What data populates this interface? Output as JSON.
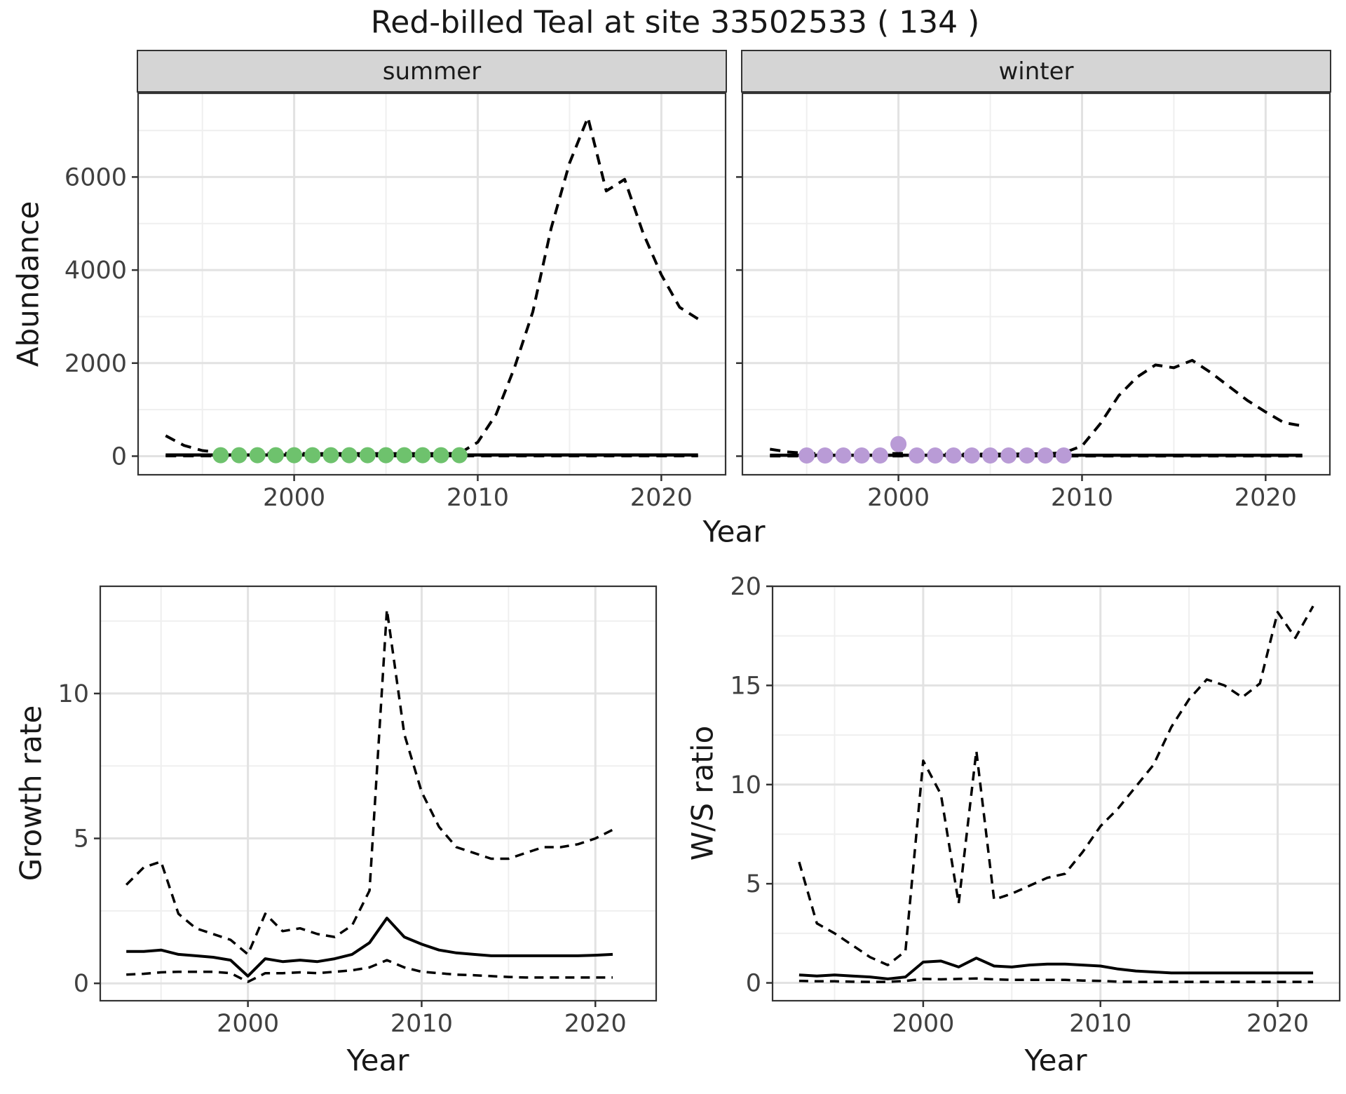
{
  "title": "Red-billed Teal at site 33502533 ( 134 )",
  "facets": {
    "summer": "summer",
    "winter": "winter"
  },
  "axis": {
    "top_xlabel": "Year",
    "top_ylabel": "Abundance",
    "growth_xlabel": "Year",
    "growth_ylabel": "Growth rate",
    "ws_xlabel": "Year",
    "ws_ylabel": "W/S ratio"
  },
  "colors": {
    "summer_points": "#6ec26d",
    "winter_points": "#b99bd6",
    "line": "#000000",
    "strip_bg": "#d5d5d5",
    "panel_border": "#333333",
    "grid_major": "#e2e2e2",
    "grid_minor": "#efefef",
    "tick_text": "#404040",
    "tick_mark": "#333333"
  },
  "chart_data": [
    {
      "id": "abundance_summer",
      "type": "line",
      "facet": "summer",
      "xlabel": "Year",
      "ylabel": "Abundance",
      "xlim": [
        1991.5,
        2023.5
      ],
      "ylim": [
        -400,
        7800
      ],
      "x_ticks": [
        2000,
        2010,
        2020
      ],
      "y_ticks": [
        0,
        2000,
        4000,
        6000
      ],
      "grid": true,
      "show_y_tick_labels": true,
      "series": [
        {
          "name": "upper_ci",
          "style": "dashed",
          "x": [
            1993,
            1994,
            1995,
            1996,
            1997,
            1998,
            1999,
            2000,
            2001,
            2002,
            2003,
            2004,
            2005,
            2006,
            2007,
            2008,
            2009,
            2010,
            2011,
            2012,
            2013,
            2014,
            2015,
            2016,
            2017,
            2018,
            2019,
            2020,
            2021,
            2022
          ],
          "y": [
            440,
            230,
            120,
            80,
            65,
            60,
            60,
            60,
            55,
            55,
            55,
            55,
            55,
            55,
            55,
            55,
            60,
            300,
            900,
            1900,
            3100,
            4900,
            6300,
            7280,
            5700,
            5950,
            4800,
            3900,
            3200,
            2950
          ]
        },
        {
          "name": "lower_ci",
          "style": "dashed",
          "x": [
            1993,
            1994,
            1995,
            1996,
            1997,
            1998,
            1999,
            2000,
            2001,
            2002,
            2003,
            2004,
            2005,
            2006,
            2007,
            2008,
            2009,
            2010,
            2011,
            2012,
            2013,
            2014,
            2015,
            2016,
            2017,
            2018,
            2019,
            2020,
            2021,
            2022
          ],
          "y": [
            5,
            5,
            5,
            5,
            5,
            5,
            5,
            5,
            5,
            5,
            5,
            5,
            5,
            5,
            5,
            5,
            5,
            5,
            5,
            5,
            5,
            5,
            5,
            5,
            5,
            5,
            5,
            5,
            5,
            5
          ]
        },
        {
          "name": "mean",
          "style": "solid",
          "x": [
            1993,
            1994,
            1995,
            1996,
            1997,
            1998,
            1999,
            2000,
            2001,
            2002,
            2003,
            2004,
            2005,
            2006,
            2007,
            2008,
            2009,
            2010,
            2011,
            2012,
            2013,
            2014,
            2015,
            2016,
            2017,
            2018,
            2019,
            2020,
            2021,
            2022
          ],
          "y": [
            25,
            25,
            25,
            25,
            25,
            25,
            25,
            25,
            25,
            25,
            25,
            25,
            25,
            25,
            25,
            25,
            25,
            25,
            25,
            25,
            25,
            25,
            25,
            25,
            25,
            25,
            25,
            25,
            25,
            25
          ]
        }
      ],
      "points": {
        "name": "observed_summer_counts",
        "color": "#6ec26d",
        "x": [
          1996,
          1997,
          1998,
          1999,
          2000,
          2001,
          2002,
          2003,
          2004,
          2005,
          2006,
          2007,
          2008,
          2009
        ],
        "y": [
          20,
          20,
          20,
          20,
          20,
          20,
          20,
          20,
          20,
          20,
          20,
          20,
          20,
          20
        ]
      }
    },
    {
      "id": "abundance_winter",
      "type": "line",
      "facet": "winter",
      "xlabel": "Year",
      "ylabel": "Abundance",
      "xlim": [
        1991.5,
        2023.5
      ],
      "ylim": [
        -400,
        7800
      ],
      "x_ticks": [
        2000,
        2010,
        2020
      ],
      "y_ticks": [
        0,
        2000,
        4000,
        6000
      ],
      "grid": true,
      "show_y_tick_labels": false,
      "series": [
        {
          "name": "upper_ci",
          "style": "dashed",
          "x": [
            1993,
            1994,
            1995,
            1996,
            1997,
            1998,
            1999,
            2000,
            2001,
            2002,
            2003,
            2004,
            2005,
            2006,
            2007,
            2008,
            2009,
            2010,
            2011,
            2012,
            2013,
            2014,
            2015,
            2016,
            2017,
            2018,
            2019,
            2020,
            2021,
            2022
          ],
          "y": [
            150,
            90,
            60,
            50,
            45,
            45,
            50,
            60,
            50,
            45,
            45,
            45,
            45,
            45,
            50,
            55,
            70,
            220,
            700,
            1300,
            1700,
            1960,
            1900,
            2060,
            1800,
            1500,
            1200,
            950,
            720,
            650
          ]
        },
        {
          "name": "lower_ci",
          "style": "dashed",
          "x": [
            1993,
            1994,
            1995,
            1996,
            1997,
            1998,
            1999,
            2000,
            2001,
            2002,
            2003,
            2004,
            2005,
            2006,
            2007,
            2008,
            2009,
            2010,
            2011,
            2012,
            2013,
            2014,
            2015,
            2016,
            2017,
            2018,
            2019,
            2020,
            2021,
            2022
          ],
          "y": [
            4,
            4,
            4,
            4,
            4,
            4,
            4,
            4,
            4,
            4,
            4,
            4,
            4,
            4,
            4,
            4,
            4,
            4,
            4,
            4,
            4,
            4,
            4,
            4,
            4,
            4,
            4,
            4,
            4,
            4
          ]
        },
        {
          "name": "mean",
          "style": "solid",
          "x": [
            1993,
            1994,
            1995,
            1996,
            1997,
            1998,
            1999,
            2000,
            2001,
            2002,
            2003,
            2004,
            2005,
            2006,
            2007,
            2008,
            2009,
            2010,
            2011,
            2012,
            2013,
            2014,
            2015,
            2016,
            2017,
            2018,
            2019,
            2020,
            2021,
            2022
          ],
          "y": [
            20,
            20,
            20,
            20,
            20,
            20,
            20,
            20,
            20,
            20,
            20,
            20,
            20,
            20,
            20,
            20,
            20,
            20,
            20,
            20,
            20,
            20,
            20,
            20,
            20,
            20,
            20,
            20,
            20,
            20
          ]
        }
      ],
      "points": {
        "name": "observed_winter_counts",
        "color": "#b99bd6",
        "x": [
          1995,
          1996,
          1997,
          1998,
          1999,
          2000,
          2001,
          2002,
          2003,
          2004,
          2005,
          2006,
          2007,
          2008,
          2009
        ],
        "y": [
          15,
          15,
          15,
          15,
          15,
          260,
          15,
          15,
          15,
          15,
          15,
          15,
          15,
          15,
          15
        ]
      }
    },
    {
      "id": "growth_rate",
      "type": "line",
      "xlabel": "Year",
      "ylabel": "Growth rate",
      "xlim": [
        1991.5,
        2023.5
      ],
      "ylim": [
        -0.6,
        13.7
      ],
      "x_ticks": [
        2000,
        2010,
        2020
      ],
      "y_ticks": [
        0,
        5,
        10
      ],
      "grid": true,
      "show_y_tick_labels": true,
      "series": [
        {
          "name": "upper_ci",
          "style": "dashed",
          "x": [
            1993,
            1994,
            1995,
            1996,
            1997,
            1998,
            1999,
            2000,
            2001,
            2002,
            2003,
            2004,
            2005,
            2006,
            2007,
            2008,
            2009,
            2010,
            2011,
            2012,
            2013,
            2014,
            2015,
            2016,
            2017,
            2018,
            2019,
            2020,
            2021
          ],
          "y": [
            3.4,
            4.0,
            4.2,
            2.4,
            1.9,
            1.7,
            1.5,
            1.0,
            2.4,
            1.8,
            1.9,
            1.7,
            1.6,
            2.0,
            3.2,
            12.9,
            8.6,
            6.6,
            5.4,
            4.7,
            4.5,
            4.3,
            4.3,
            4.5,
            4.7,
            4.7,
            4.8,
            5.0,
            5.3
          ]
        },
        {
          "name": "lower_ci",
          "style": "dashed",
          "x": [
            1993,
            1994,
            1995,
            1996,
            1997,
            1998,
            1999,
            2000,
            2001,
            2002,
            2003,
            2004,
            2005,
            2006,
            2007,
            2008,
            2009,
            2010,
            2011,
            2012,
            2013,
            2014,
            2015,
            2016,
            2017,
            2018,
            2019,
            2020,
            2021
          ],
          "y": [
            0.3,
            0.33,
            0.38,
            0.4,
            0.4,
            0.4,
            0.35,
            0.05,
            0.35,
            0.35,
            0.38,
            0.35,
            0.4,
            0.45,
            0.55,
            0.8,
            0.55,
            0.4,
            0.35,
            0.3,
            0.28,
            0.25,
            0.22,
            0.2,
            0.2,
            0.2,
            0.2,
            0.2,
            0.2
          ]
        },
        {
          "name": "mean",
          "style": "solid",
          "x": [
            1993,
            1994,
            1995,
            1996,
            1997,
            1998,
            1999,
            2000,
            2001,
            2002,
            2003,
            2004,
            2005,
            2006,
            2007,
            2008,
            2009,
            2010,
            2011,
            2012,
            2013,
            2014,
            2015,
            2016,
            2017,
            2018,
            2019,
            2020,
            2021
          ],
          "y": [
            1.1,
            1.1,
            1.15,
            1.0,
            0.95,
            0.9,
            0.8,
            0.25,
            0.85,
            0.75,
            0.8,
            0.75,
            0.85,
            1.0,
            1.4,
            2.25,
            1.6,
            1.35,
            1.15,
            1.05,
            1.0,
            0.95,
            0.95,
            0.95,
            0.95,
            0.95,
            0.95,
            0.97,
            1.0
          ]
        }
      ]
    },
    {
      "id": "ws_ratio",
      "type": "line",
      "xlabel": "Year",
      "ylabel": "W/S ratio",
      "xlim": [
        1991.5,
        2023.5
      ],
      "ylim": [
        -0.9,
        20.0
      ],
      "x_ticks": [
        2000,
        2010,
        2020
      ],
      "y_ticks": [
        0,
        5,
        10,
        15,
        20
      ],
      "grid": true,
      "show_y_tick_labels": true,
      "series": [
        {
          "name": "upper_ci",
          "style": "dashed",
          "x": [
            1993,
            1994,
            1995,
            1996,
            1997,
            1998,
            1999,
            2000,
            2001,
            2002,
            2003,
            2004,
            2005,
            2006,
            2007,
            2008,
            2009,
            2010,
            2011,
            2012,
            2013,
            2014,
            2015,
            2016,
            2017,
            2018,
            2019,
            2020,
            2021,
            2022
          ],
          "y": [
            6.1,
            3.0,
            2.5,
            1.9,
            1.3,
            0.9,
            1.6,
            11.2,
            9.5,
            4.0,
            11.7,
            4.2,
            4.5,
            4.9,
            5.3,
            5.5,
            6.6,
            7.9,
            8.8,
            9.9,
            11.0,
            12.9,
            14.3,
            15.3,
            15.0,
            14.4,
            15.1,
            18.7,
            17.4,
            19.0
          ]
        },
        {
          "name": "lower_ci",
          "style": "dashed",
          "x": [
            1993,
            1994,
            1995,
            1996,
            1997,
            1998,
            1999,
            2000,
            2001,
            2002,
            2003,
            2004,
            2005,
            2006,
            2007,
            2008,
            2009,
            2010,
            2011,
            2012,
            2013,
            2014,
            2015,
            2016,
            2017,
            2018,
            2019,
            2020,
            2021,
            2022
          ],
          "y": [
            0.1,
            0.08,
            0.08,
            0.06,
            0.05,
            0.05,
            0.1,
            0.2,
            0.18,
            0.2,
            0.22,
            0.18,
            0.15,
            0.15,
            0.15,
            0.15,
            0.12,
            0.1,
            0.06,
            0.05,
            0.05,
            0.05,
            0.05,
            0.05,
            0.05,
            0.05,
            0.05,
            0.05,
            0.05,
            0.05
          ]
        },
        {
          "name": "mean",
          "style": "solid",
          "x": [
            1993,
            1994,
            1995,
            1996,
            1997,
            1998,
            1999,
            2000,
            2001,
            2002,
            2003,
            2004,
            2005,
            2006,
            2007,
            2008,
            2009,
            2010,
            2011,
            2012,
            2013,
            2014,
            2015,
            2016,
            2017,
            2018,
            2019,
            2020,
            2021,
            2022
          ],
          "y": [
            0.4,
            0.35,
            0.4,
            0.35,
            0.3,
            0.2,
            0.3,
            1.05,
            1.1,
            0.8,
            1.25,
            0.85,
            0.8,
            0.9,
            0.95,
            0.95,
            0.9,
            0.85,
            0.7,
            0.6,
            0.55,
            0.5,
            0.5,
            0.5,
            0.5,
            0.5,
            0.5,
            0.5,
            0.5,
            0.5
          ]
        }
      ]
    }
  ]
}
